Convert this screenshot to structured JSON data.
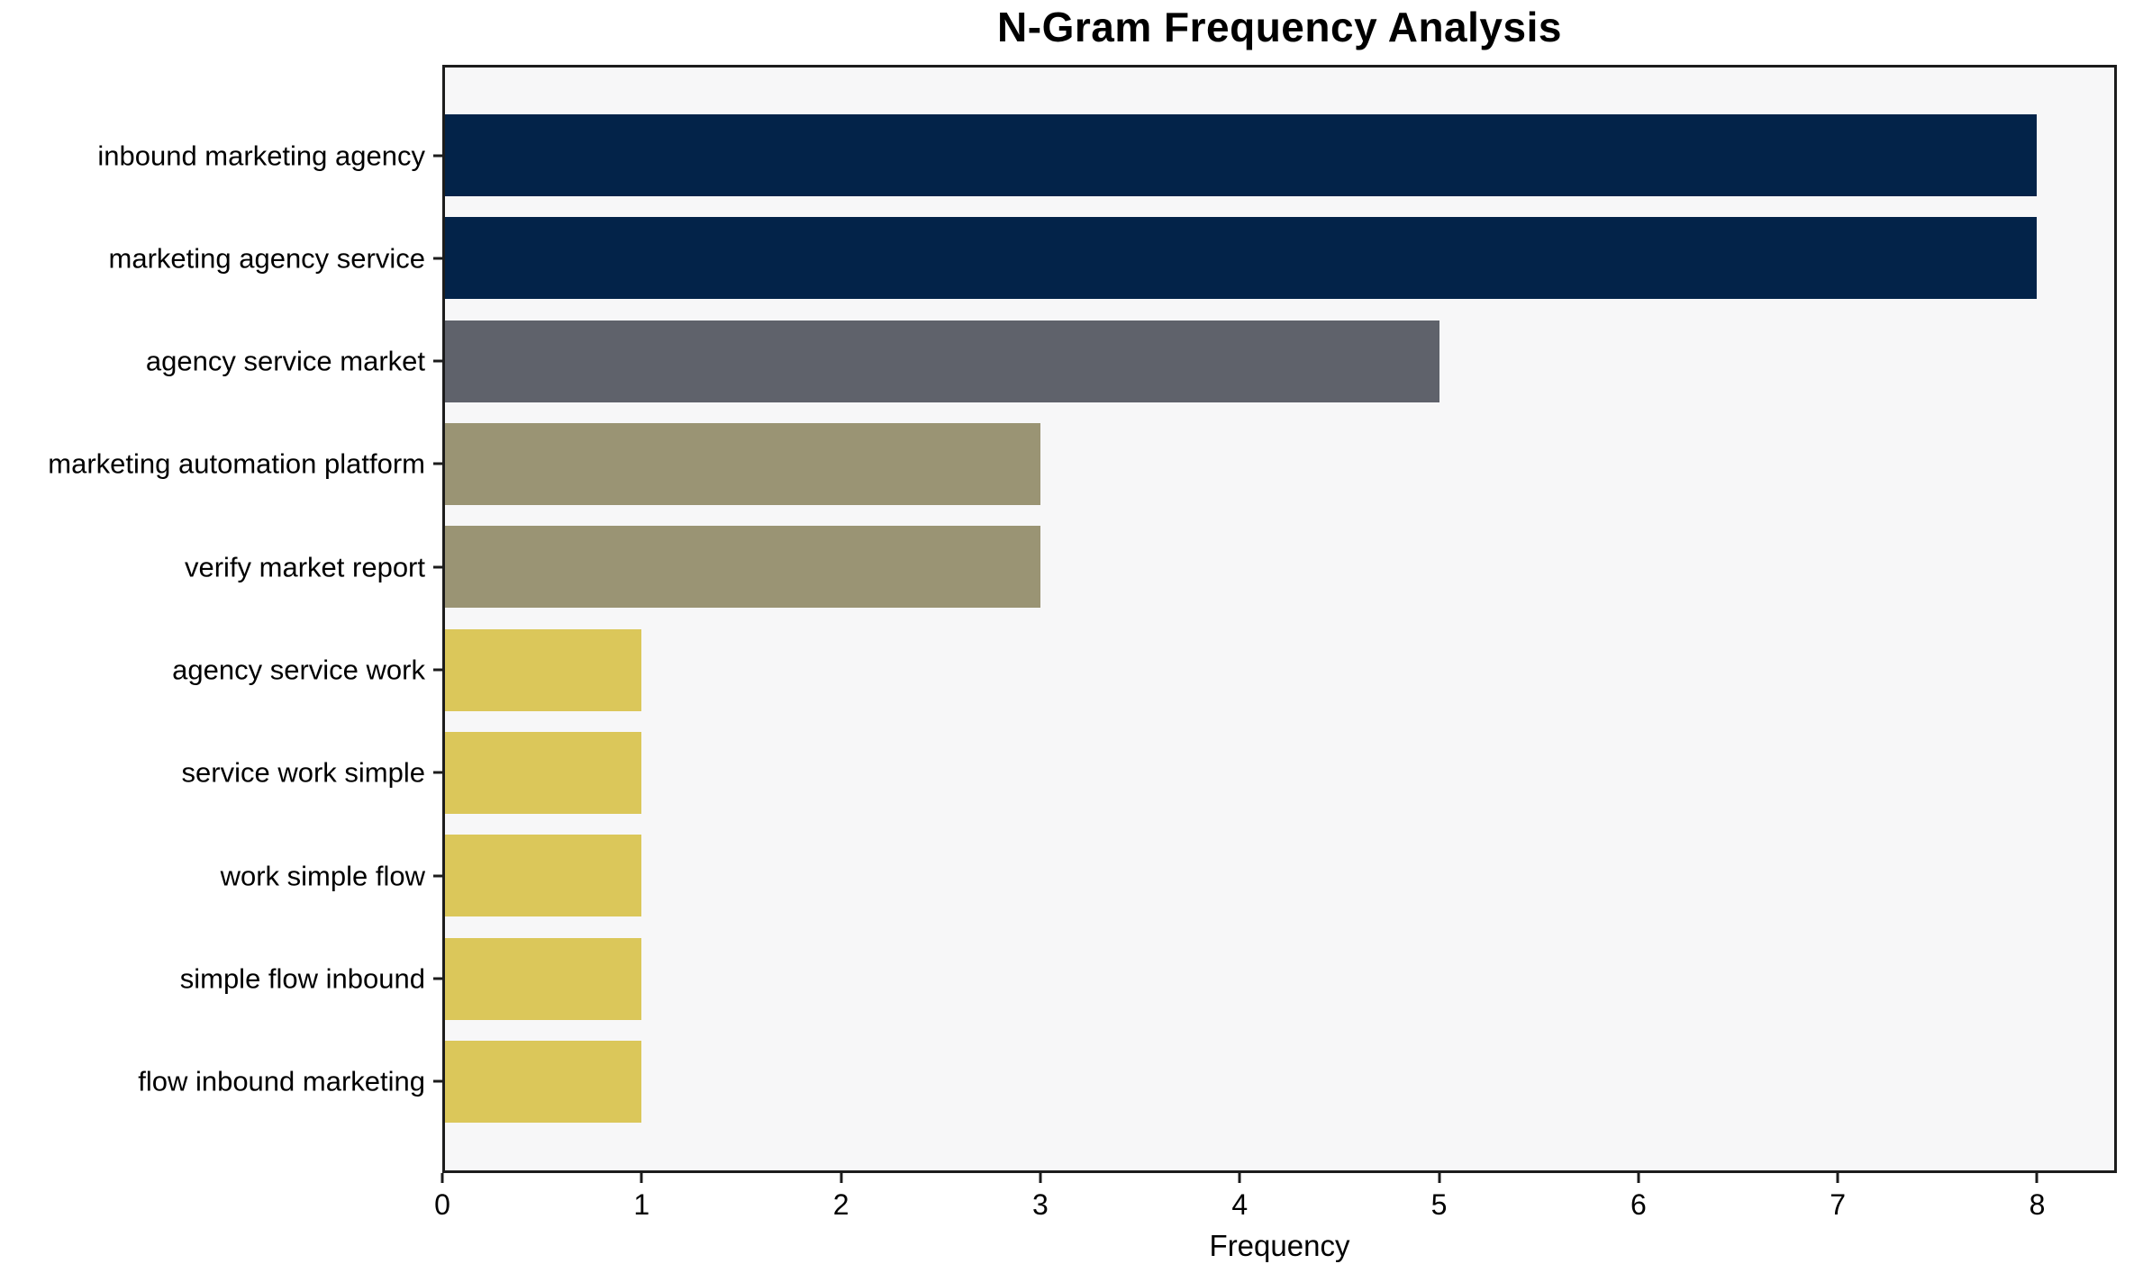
{
  "chart_data": {
    "type": "bar",
    "orientation": "horizontal",
    "title": "N-Gram Frequency Analysis",
    "xlabel": "Frequency",
    "ylabel": "",
    "categories": [
      "inbound marketing agency",
      "marketing agency service",
      "agency service market",
      "marketing automation platform",
      "verify market report",
      "agency service work",
      "service work simple",
      "work simple flow",
      "simple flow inbound",
      "flow inbound marketing"
    ],
    "values": [
      8,
      8,
      5,
      3,
      3,
      1,
      1,
      1,
      1,
      1
    ],
    "bar_colors": [
      "#032349",
      "#032349",
      "#5f626b",
      "#9a9474",
      "#9a9474",
      "#dbc75a",
      "#dbc75a",
      "#dbc75a",
      "#dbc75a",
      "#dbc75a"
    ],
    "xlim": [
      0,
      8.4
    ],
    "x_ticks": [
      0,
      1,
      2,
      3,
      4,
      5,
      6,
      7,
      8
    ],
    "grid": false,
    "legend": null,
    "colors": {
      "plot_background": "#f7f7f8",
      "figure_background": "#ffffff",
      "axis": "#1c1c1c",
      "text": "#000000"
    }
  }
}
